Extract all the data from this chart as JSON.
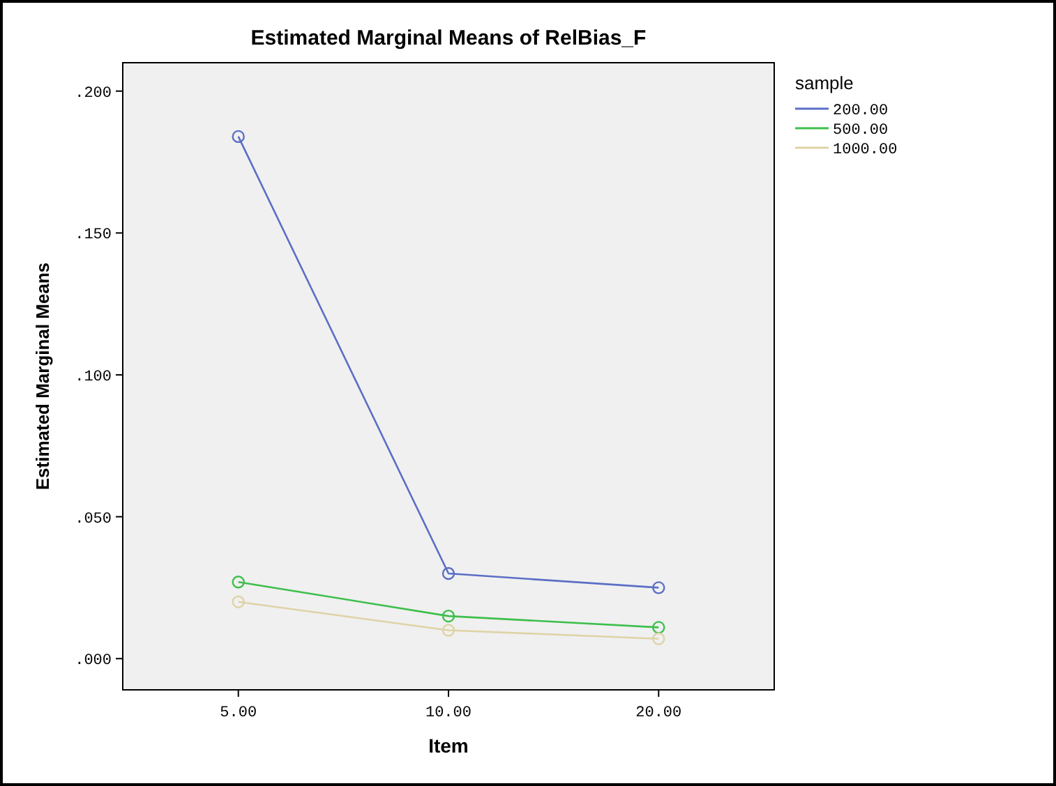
{
  "chart_data": {
    "type": "line",
    "title": "Estimated Marginal Means of RelBias_F",
    "xlabel": "Item",
    "ylabel": "Estimated Marginal Means",
    "legend_title": "sample",
    "categories": [
      "5.00",
      "10.00",
      "20.00"
    ],
    "series": [
      {
        "name": "200.00",
        "color": "#5b6ec6",
        "values": [
          0.184,
          0.03,
          0.025
        ]
      },
      {
        "name": "500.00",
        "color": "#3dbf4c",
        "values": [
          0.027,
          0.015,
          0.011
        ]
      },
      {
        "name": "1000.00",
        "color": "#dfd3a6",
        "values": [
          0.02,
          0.01,
          0.007
        ]
      }
    ],
    "ylim": [
      -0.011,
      0.21
    ],
    "yticks": [
      {
        "value": 0,
        "label": ".000"
      },
      {
        "value": 0.05,
        "label": ".050"
      },
      {
        "value": 0.1,
        "label": ".100"
      },
      {
        "value": 0.15,
        "label": ".150"
      },
      {
        "value": 0.2,
        "label": ".200"
      }
    ],
    "marker": "circle",
    "grid": false,
    "legend": "right"
  }
}
